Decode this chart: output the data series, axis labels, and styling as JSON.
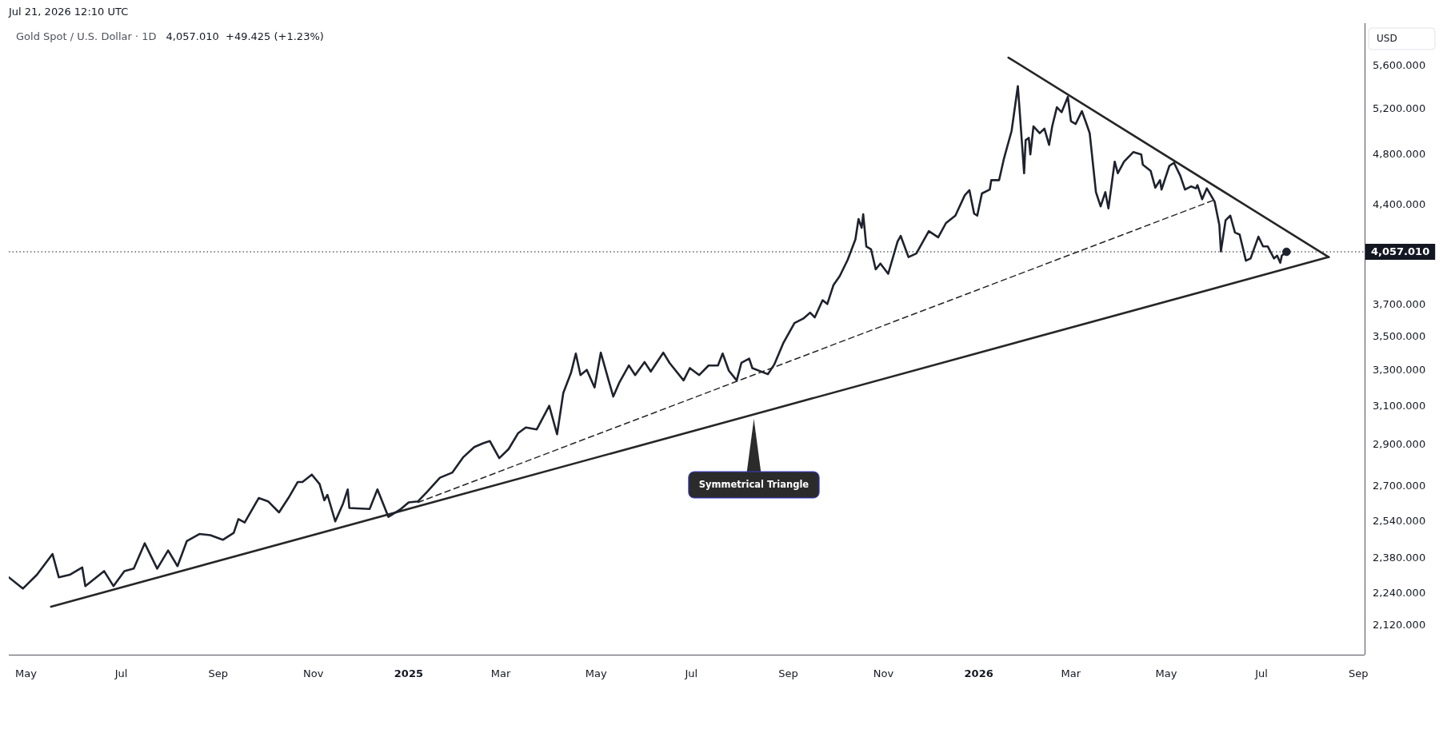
{
  "chart_data": {
    "type": "line",
    "title": "Gold Spot / U.S. Dollar · 1D",
    "subtitle": "4,057.010  +49.425 (+1.23%)",
    "ylabel": "USD",
    "annotations": [
      "Jul 21, 2026 12:10 UTC",
      {
        "text": "Symmetrical Triangle",
        "x": "2025-08-10",
        "y": 3035
      }
    ],
    "log": true,
    "xlim": [
      "2024-04-20",
      "2026-09-05"
    ],
    "xticks": [
      {
        "value": "2024-05-01",
        "label": "May"
      },
      {
        "value": "2024-07-01",
        "label": "Jul"
      },
      {
        "value": "2024-09-01",
        "label": "Sep"
      },
      {
        "value": "2024-11-01",
        "label": "Nov"
      },
      {
        "value": "2025-01-01",
        "label": "2025"
      },
      {
        "value": "2025-03-01",
        "label": "Mar"
      },
      {
        "value": "2025-05-01",
        "label": "May"
      },
      {
        "value": "2025-07-01",
        "label": "Jul"
      },
      {
        "value": "2025-09-01",
        "label": "Sep"
      },
      {
        "value": "2025-11-01",
        "label": "Nov"
      },
      {
        "value": "2026-01-01",
        "label": "2026"
      },
      {
        "value": "2026-03-01",
        "label": "Mar"
      },
      {
        "value": "2026-05-01",
        "label": "May"
      },
      {
        "value": "2026-07-01",
        "label": "Jul"
      },
      {
        "value": "2026-09-01",
        "label": "Sep"
      }
    ],
    "ylim": [
      2015,
      6035
    ],
    "yticks": [
      {
        "value": 2120,
        "label": "2,120.000"
      },
      {
        "value": 2240,
        "label": "2,240.000"
      },
      {
        "value": 2380,
        "label": "2,380.000"
      },
      {
        "value": 2540,
        "label": "2,540.000"
      },
      {
        "value": 2700,
        "label": "2,700.000"
      },
      {
        "value": 2900,
        "label": "2,900.000"
      },
      {
        "value": 3100,
        "label": "3,100.000"
      },
      {
        "value": 3300,
        "label": "3,300.000"
      },
      {
        "value": 3500,
        "label": "3,500.000"
      },
      {
        "value": 3700,
        "label": "3,700.000"
      },
      {
        "value": 4400,
        "label": "4,400.000"
      },
      {
        "value": 4800,
        "label": "4,800.000"
      },
      {
        "value": 5200,
        "label": "5,200.000"
      },
      {
        "value": 5600,
        "label": "5,600.000"
      }
    ],
    "ref_lines": [
      {
        "axis": "y",
        "value": 4057.01,
        "label": "4,057.010",
        "line_style": "dotted",
        "color": "#131722"
      }
    ],
    "series": [
      {
        "color": "#1e222d",
        "x": [
          "2024-04-20",
          "2024-04-29",
          "2024-05-08",
          "2024-05-18",
          "2024-05-22",
          "2024-05-29",
          "2024-06-06",
          "2024-06-08",
          "2024-06-20",
          "2024-06-26",
          "2024-07-03",
          "2024-07-09",
          "2024-07-16",
          "2024-07-24",
          "2024-07-31",
          "2024-08-06",
          "2024-08-12",
          "2024-08-20",
          "2024-08-27",
          "2024-09-04",
          "2024-09-11",
          "2024-09-14",
          "2024-09-18",
          "2024-09-27",
          "2024-10-03",
          "2024-10-10",
          "2024-10-16",
          "2024-10-22",
          "2024-10-25",
          "2024-10-31",
          "2024-11-05",
          "2024-11-08",
          "2024-11-10",
          "2024-11-15",
          "2024-11-20",
          "2024-11-23",
          "2024-11-24",
          "2024-12-07",
          "2024-12-12",
          "2024-12-19",
          "2024-12-27",
          "2025-01-01",
          "2025-01-07",
          "2025-01-13",
          "2025-01-21",
          "2025-01-29",
          "2025-02-05",
          "2025-02-12",
          "2025-02-18",
          "2025-02-22",
          "2025-02-28",
          "2025-03-06",
          "2025-03-12",
          "2025-03-17",
          "2025-03-24",
          "2025-04-01",
          "2025-04-06",
          "2025-04-10",
          "2025-04-15",
          "2025-04-18",
          "2025-04-21",
          "2025-04-25",
          "2025-04-30",
          "2025-05-04",
          "2025-05-09",
          "2025-05-12",
          "2025-05-16",
          "2025-05-22",
          "2025-05-26",
          "2025-06-01",
          "2025-06-05",
          "2025-06-13",
          "2025-06-17",
          "2025-06-26",
          "2025-06-30",
          "2025-07-06",
          "2025-07-12",
          "2025-07-18",
          "2025-07-21",
          "2025-07-25",
          "2025-07-30",
          "2025-08-02",
          "2025-08-07",
          "2025-08-09",
          "2025-08-19",
          "2025-08-23",
          "2025-08-29",
          "2025-09-05",
          "2025-09-11",
          "2025-09-15",
          "2025-09-18",
          "2025-09-23",
          "2025-09-26",
          "2025-09-30",
          "2025-10-04",
          "2025-10-09",
          "2025-10-14",
          "2025-10-16",
          "2025-10-18",
          "2025-10-19",
          "2025-10-21",
          "2025-10-24",
          "2025-10-27",
          "2025-10-30",
          "2025-11-04",
          "2025-11-10",
          "2025-11-12",
          "2025-11-17",
          "2025-11-22",
          "2025-11-30",
          "2025-12-06",
          "2025-12-11",
          "2025-12-17",
          "2025-12-23",
          "2025-12-26",
          "2025-12-29",
          "2025-12-31",
          "2026-01-03",
          "2026-01-08",
          "2026-01-09",
          "2026-01-14",
          "2026-01-17",
          "2026-01-22",
          "2026-01-26",
          "2026-01-27",
          "2026-01-30",
          "2026-01-31",
          "2026-02-02",
          "2026-02-03",
          "2026-02-05",
          "2026-02-09",
          "2026-02-12",
          "2026-02-15",
          "2026-02-17",
          "2026-02-20",
          "2026-02-23",
          "2026-02-27",
          "2026-03-01",
          "2026-03-04",
          "2026-03-08",
          "2026-03-11",
          "2026-03-13",
          "2026-03-17",
          "2026-03-20",
          "2026-03-23",
          "2026-03-25",
          "2026-03-29",
          "2026-03-31",
          "2026-04-04",
          "2026-04-10",
          "2026-04-15",
          "2026-04-16",
          "2026-04-21",
          "2026-04-24",
          "2026-04-27",
          "2026-04-28",
          "2026-05-03",
          "2026-05-06",
          "2026-05-10",
          "2026-05-13",
          "2026-05-17",
          "2026-05-20",
          "2026-05-21",
          "2026-05-24",
          "2026-05-27",
          "2026-06-01",
          "2026-06-04",
          "2026-06-05",
          "2026-06-08",
          "2026-06-11",
          "2026-06-14",
          "2026-06-17",
          "2026-06-21",
          "2026-06-24",
          "2026-06-29",
          "2026-07-02",
          "2026-07-05",
          "2026-07-09",
          "2026-07-11",
          "2026-07-13",
          "2026-07-14",
          "2026-07-17"
        ],
        "values": [
          2305,
          2260,
          2315,
          2400,
          2305,
          2315,
          2345,
          2270,
          2330,
          2270,
          2330,
          2340,
          2445,
          2340,
          2415,
          2350,
          2455,
          2485,
          2480,
          2460,
          2490,
          2550,
          2535,
          2645,
          2630,
          2580,
          2645,
          2720,
          2720,
          2755,
          2710,
          2635,
          2660,
          2540,
          2620,
          2685,
          2600,
          2595,
          2685,
          2560,
          2595,
          2625,
          2630,
          2675,
          2740,
          2765,
          2840,
          2890,
          2910,
          2920,
          2835,
          2880,
          2960,
          2990,
          2980,
          3105,
          2955,
          3175,
          3290,
          3400,
          3275,
          3305,
          3205,
          3405,
          3245,
          3155,
          3235,
          3330,
          3275,
          3350,
          3295,
          3405,
          3345,
          3245,
          3315,
          3275,
          3330,
          3330,
          3400,
          3300,
          3245,
          3345,
          3370,
          3315,
          3280,
          3335,
          3465,
          3585,
          3615,
          3650,
          3620,
          3730,
          3705,
          3830,
          3890,
          4000,
          4145,
          4295,
          4230,
          4330,
          4095,
          4075,
          3935,
          3975,
          3905,
          4130,
          4170,
          4020,
          4045,
          4205,
          4160,
          4265,
          4320,
          4475,
          4515,
          4335,
          4320,
          4490,
          4520,
          4595,
          4595,
          4765,
          5005,
          5410,
          5215,
          4650,
          4925,
          4945,
          4805,
          5045,
          4985,
          5025,
          4885,
          5045,
          5215,
          5170,
          5310,
          5090,
          5065,
          5180,
          5065,
          4985,
          4500,
          4390,
          4500,
          4375,
          4745,
          4650,
          4745,
          4825,
          4805,
          4720,
          4670,
          4535,
          4595,
          4520,
          4710,
          4735,
          4630,
          4520,
          4545,
          4530,
          4555,
          4445,
          4530,
          4425,
          4250,
          4060,
          4285,
          4320,
          4195,
          4180,
          3995,
          4010,
          4165,
          4095,
          4095,
          4010,
          4030,
          3980,
          4030,
          4057.01
        ]
      },
      {
        "color": "#262626",
        "x": [
          "2026-01-20",
          "2026-08-13"
        ],
        "values": [
          5685,
          4020
        ]
      },
      {
        "color": "#262626",
        "x": [
          "2024-05-17",
          "2026-08-13"
        ],
        "values": [
          2190,
          4020
        ]
      },
      {
        "color": "#262626",
        "line_style": "dashed",
        "x": [
          "2025-01-07",
          "2026-06-02"
        ],
        "values": [
          2625,
          4445
        ]
      },
      {
        "type": "scatter",
        "color": "#1e222d",
        "marker": "circle",
        "x": [
          "2026-07-17"
        ],
        "values": [
          4057.01
        ]
      }
    ]
  }
}
